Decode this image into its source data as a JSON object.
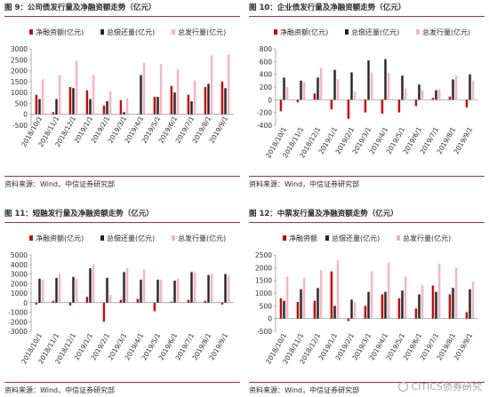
{
  "source_text": "资料来源：Wind，中信证券研究部",
  "watermark": "CITICS债券研究",
  "legend_labels": [
    "净融资额(亿元)",
    "总偿还量(亿元)",
    "总发行量(亿元)"
  ],
  "legend_labels_p3": [
    "净融资额",
    "总偿还量(亿元)",
    "总发行量(亿元)"
  ],
  "colors": {
    "net": "#c00000",
    "repay": "#1a1a1a",
    "issue": "#f2b3c0",
    "accent": "#a0202a"
  },
  "chart_data": [
    {
      "type": "bar",
      "title": "图 9：公司债发行量及净融资额走势（亿元）",
      "categories": [
        "2018/10/1",
        "2018/11/1",
        "2018/12/1",
        "2019/1/1",
        "2019/2/1",
        "2019/3/1",
        "2019/4/1",
        "2019/5/1",
        "2019/6/1",
        "2019/7/1",
        "2019/8/1",
        "2019/9/1"
      ],
      "x_tick_labels": [
        "2018/10/1",
        "2018/11/1",
        "2018/12/1",
        "2019/1/1",
        "2019/2/1",
        "2019/3/1",
        "2019/4/1",
        "2019/5/1",
        "2019/6/1",
        "2019/7/1",
        "2019/8/1",
        "2019/9/1"
      ],
      "ylim": [
        -500,
        3000
      ],
      "yticks": [
        -500,
        0,
        500,
        1000,
        1500,
        2000,
        2500,
        3000
      ],
      "legend_position": "top",
      "grid": false,
      "series": [
        {
          "name": "净融资额(亿元)",
          "values": [
            900,
            100,
            1250,
            1100,
            400,
            650,
            0,
            800,
            1300,
            900,
            1250,
            1500
          ]
        },
        {
          "name": "总偿还量(亿元)",
          "values": [
            700,
            700,
            1200,
            700,
            600,
            100,
            1800,
            800,
            1000,
            600,
            1400,
            1200
          ]
        },
        {
          "name": "总发行量(亿元)",
          "values": [
            1600,
            1800,
            2450,
            1800,
            1050,
            750,
            2350,
            2300,
            2050,
            1550,
            2700,
            2750
          ]
        }
      ]
    },
    {
      "type": "bar",
      "title": "图 10：企业债发行量及净融资额走势（亿元）",
      "categories": [
        "2018/10/1",
        "2018/11/1",
        "2018/12/1",
        "2019/1/1",
        "2019/2/1",
        "2019/3/1",
        "2019/4/1",
        "2019/5/1",
        "2019/6/1",
        "2019/7/1",
        "2019/8/1",
        "2019/9/1"
      ],
      "x_tick_labels": [
        "2018/10/1",
        "2018/11/1",
        "2018/12/1",
        "2019/1/1",
        "2019/2/1",
        "2019/3/1",
        "2019/4/1",
        "2019/5/1",
        "2019/6/1",
        "2019/7/1",
        "2019/8/1",
        "2019/9/1"
      ],
      "ylim": [
        -400,
        800
      ],
      "yticks": [
        -400,
        -200,
        0,
        200,
        400,
        600,
        800
      ],
      "legend_position": "top",
      "grid": false,
      "series": [
        {
          "name": "净融资额(亿元)",
          "values": [
            -180,
            -40,
            100,
            -150,
            -300,
            -200,
            -220,
            -200,
            -100,
            30,
            50,
            -120
          ]
        },
        {
          "name": "总偿还量(亿元)",
          "values": [
            350,
            300,
            350,
            470,
            430,
            620,
            640,
            380,
            240,
            150,
            320,
            400
          ]
        },
        {
          "name": "总发行量(亿元)",
          "values": [
            200,
            280,
            500,
            320,
            130,
            430,
            420,
            180,
            150,
            170,
            380,
            300
          ]
        }
      ]
    },
    {
      "type": "bar",
      "title": "图 11：短融发行量及净融资额走势（亿元）",
      "categories": [
        "2018/10/1",
        "2018/11/1",
        "2018/12/1",
        "2019/1/1",
        "2019/2/1",
        "2019/3/1",
        "2019/4/1",
        "2019/5/1",
        "2019/6/1",
        "2019/7/1",
        "2019/8/1",
        "2019/9/1"
      ],
      "x_tick_labels": [
        "2018/10/1",
        "2018/11/1",
        "2018/12/1",
        "2019/1/1",
        "2019/2/1",
        "2019/3/1",
        "2019/4/1",
        "2019/5/1",
        "2019/6/1",
        "2019/7/1",
        "2019/8/1",
        "2019/9/1"
      ],
      "ylim": [
        -3000,
        5000
      ],
      "yticks": [
        -3000,
        -2000,
        -1000,
        0,
        1000,
        2000,
        3000,
        4000,
        5000
      ],
      "legend_position": "top",
      "grid": false,
      "series": [
        {
          "name": "净融资额(亿元)",
          "values": [
            -200,
            200,
            -300,
            600,
            -2000,
            300,
            400,
            -900,
            100,
            300,
            200,
            -200
          ]
        },
        {
          "name": "总偿还量(亿元)",
          "values": [
            2500,
            2600,
            2700,
            3600,
            2600,
            3200,
            2400,
            2400,
            2300,
            3200,
            2900,
            3000
          ]
        },
        {
          "name": "总发行量(亿元)",
          "values": [
            2400,
            3000,
            2500,
            4000,
            800,
            3600,
            3500,
            2400,
            2500,
            3200,
            3000,
            2800
          ]
        }
      ]
    },
    {
      "type": "bar",
      "title": "图 12：中票发行量及净融资额走势（亿元）",
      "categories": [
        "2018/10/1",
        "2018/11/1",
        "2018/12/1",
        "2019/1/1",
        "2019/2/1",
        "2019/3/1",
        "2019/4/1",
        "2019/5/1",
        "2019/6/1",
        "2019/7/1",
        "2019/8/1",
        "2019/9/1"
      ],
      "x_tick_labels": [
        "2018/10/1",
        "2018/11/1",
        "2018/12/1",
        "2019/1/1",
        "2019/2/1",
        "2019/3/1",
        "2019/4/1",
        "2019/5/1",
        "2019/6/1",
        "2019/7/1",
        "2019/8/1",
        "2019/9/1"
      ],
      "ylim": [
        -500,
        2500
      ],
      "yticks": [
        -500,
        0,
        500,
        1000,
        1500,
        2000,
        2500
      ],
      "legend_position": "top",
      "grid": false,
      "series": [
        {
          "name": "净融资额",
          "values": [
            800,
            650,
            700,
            1850,
            -100,
            500,
            950,
            800,
            400,
            1300,
            950,
            250
          ]
        },
        {
          "name": "总偿还量(亿元)",
          "values": [
            700,
            1150,
            1200,
            500,
            750,
            1050,
            1050,
            1100,
            950,
            1050,
            1200,
            1150
          ]
        },
        {
          "name": "总发行量(亿元)",
          "values": [
            1650,
            1600,
            1900,
            2300,
            650,
            1850,
            2200,
            1650,
            1300,
            2150,
            2000,
            1450
          ]
        }
      ]
    }
  ]
}
